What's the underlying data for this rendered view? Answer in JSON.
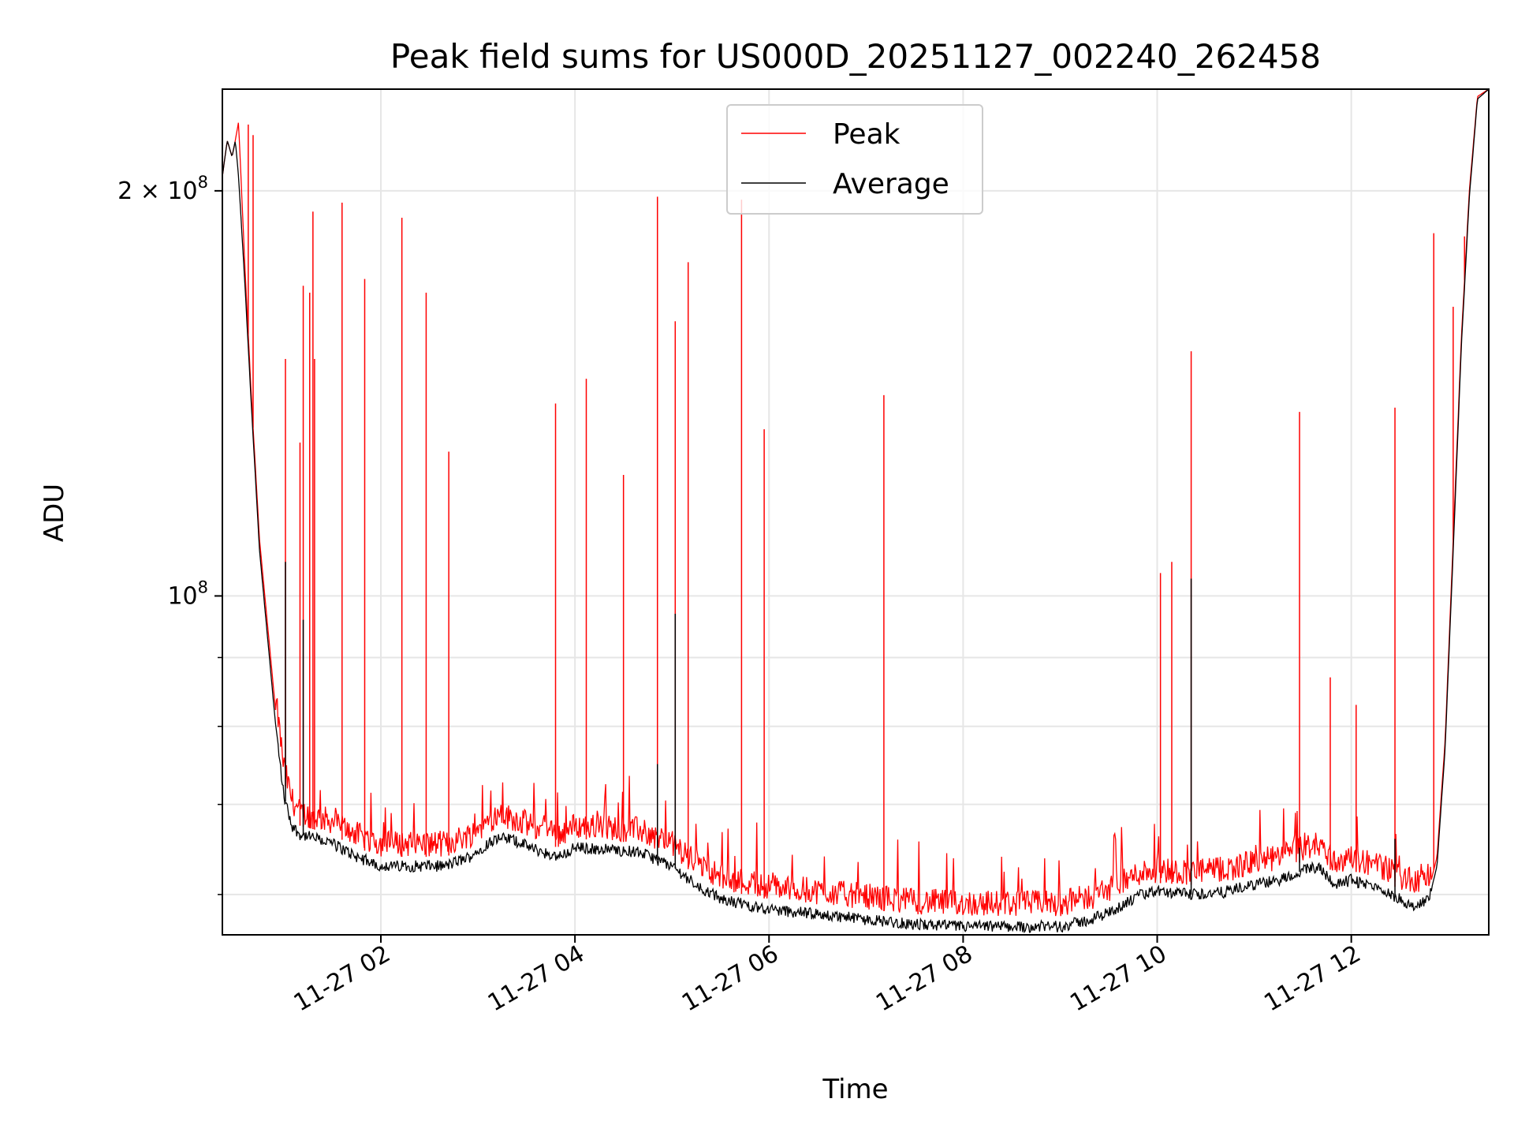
{
  "chart_data": {
    "type": "line",
    "title": "Peak field sums for US000D_20251127_002240_262458",
    "xlabel": "Time",
    "ylabel": "ADU",
    "yscale": "log",
    "ylim": [
      56000000,
      238000000
    ],
    "xlim": [
      "2025-11-27 00:22",
      "2025-11-27 13:25"
    ],
    "grid": true,
    "legend_position": "top-center",
    "x_ticks": [
      "11-27 02",
      "11-27 04",
      "11-27 06",
      "11-27 08",
      "11-27 10",
      "11-27 12"
    ],
    "x_tick_values": [
      "2025-11-27 02:00",
      "2025-11-27 04:00",
      "2025-11-27 06:00",
      "2025-11-27 08:00",
      "2025-11-27 10:00",
      "2025-11-27 12:00"
    ],
    "y_major_ticks": [
      {
        "value": 100000000,
        "mantissa": "",
        "label_base": "10",
        "label_exp": "8"
      },
      {
        "value": 200000000,
        "mantissa": "2 × ",
        "label_base": "10",
        "label_exp": "8"
      }
    ],
    "y_minor_ticks": [
      60000000,
      70000000,
      80000000,
      90000000
    ],
    "baseline": {
      "x": [
        "2025-11-27 00:22",
        "2025-11-27 00:25",
        "2025-11-27 00:28",
        "2025-11-27 00:30",
        "2025-11-27 00:32",
        "2025-11-27 00:36",
        "2025-11-27 00:40",
        "2025-11-27 00:45",
        "2025-11-27 00:50",
        "2025-11-27 00:55",
        "2025-11-27 01:00",
        "2025-11-27 01:05",
        "2025-11-27 01:10",
        "2025-11-27 01:20",
        "2025-11-27 01:30",
        "2025-11-27 01:45",
        "2025-11-27 02:00",
        "2025-11-27 02:20",
        "2025-11-27 02:40",
        "2025-11-27 02:55",
        "2025-11-27 03:10",
        "2025-11-27 03:20",
        "2025-11-27 03:40",
        "2025-11-27 03:50",
        "2025-11-27 04:00",
        "2025-11-27 04:20",
        "2025-11-27 04:40",
        "2025-11-27 05:00",
        "2025-11-27 05:15",
        "2025-11-27 05:30",
        "2025-11-27 06:00",
        "2025-11-27 06:30",
        "2025-11-27 07:00",
        "2025-11-27 07:30",
        "2025-11-27 08:00",
        "2025-11-27 08:30",
        "2025-11-27 09:00",
        "2025-11-27 09:20",
        "2025-11-27 09:40",
        "2025-11-27 09:50",
        "2025-11-27 10:00",
        "2025-11-27 10:20",
        "2025-11-27 10:40",
        "2025-11-27 11:00",
        "2025-11-27 11:15",
        "2025-11-27 11:30",
        "2025-11-27 11:40",
        "2025-11-27 11:50",
        "2025-11-27 12:00",
        "2025-11-27 12:10",
        "2025-11-27 12:20",
        "2025-11-27 12:30",
        "2025-11-27 12:40",
        "2025-11-27 12:48",
        "2025-11-27 12:53",
        "2025-11-27 12:58",
        "2025-11-27 13:03",
        "2025-11-27 13:08",
        "2025-11-27 13:13",
        "2025-11-27 13:18",
        "2025-11-27 13:25"
      ],
      "peak": [
        205000000,
        218000000,
        212000000,
        218000000,
        225000000,
        175000000,
        140000000,
        110000000,
        95000000,
        82000000,
        73000000,
        69000000,
        67500000,
        67000000,
        66500000,
        65000000,
        64000000,
        64000000,
        64000000,
        65000000,
        67000000,
        67000000,
        65500000,
        65000000,
        66000000,
        65800000,
        65500000,
        64000000,
        62000000,
        60500000,
        59500000,
        59000000,
        58500000,
        58000000,
        57800000,
        57800000,
        57800000,
        58500000,
        60000000,
        61000000,
        61200000,
        61000000,
        61200000,
        62000000,
        62500000,
        63500000,
        64000000,
        62000000,
        62500000,
        62000000,
        61500000,
        60500000,
        59800000,
        60500000,
        64000000,
        78000000,
        110000000,
        155000000,
        200000000,
        235000000,
        238000000
      ],
      "average": [
        205000000,
        218000000,
        212000000,
        218000000,
        205000000,
        170000000,
        138000000,
        108000000,
        93000000,
        80000000,
        71000000,
        67500000,
        66500000,
        66000000,
        65500000,
        64000000,
        63000000,
        63000000,
        63000000,
        64000000,
        66000000,
        66000000,
        64500000,
        64000000,
        65000000,
        64800000,
        64500000,
        63000000,
        61000000,
        59500000,
        58500000,
        58000000,
        57500000,
        57000000,
        56800000,
        56800000,
        56800000,
        57500000,
        59000000,
        60000000,
        60300000,
        60000000,
        60200000,
        61000000,
        61500000,
        62500000,
        63000000,
        61000000,
        61500000,
        61000000,
        60500000,
        59500000,
        58800000,
        59500000,
        63000000,
        77000000,
        108000000,
        153000000,
        198000000,
        234000000,
        238000000
      ]
    },
    "series": [
      {
        "name": "Peak",
        "color": "#ff0000",
        "spikes": [
          {
            "x": "2025-11-27 00:38",
            "y": 224000000
          },
          {
            "x": "2025-11-27 00:41",
            "y": 220000000
          },
          {
            "x": "2025-11-27 01:01",
            "y": 150000000
          },
          {
            "x": "2025-11-27 01:10",
            "y": 130000000
          },
          {
            "x": "2025-11-27 01:12",
            "y": 170000000
          },
          {
            "x": "2025-11-27 01:16",
            "y": 168000000
          },
          {
            "x": "2025-11-27 01:18",
            "y": 193000000
          },
          {
            "x": "2025-11-27 01:19",
            "y": 150000000
          },
          {
            "x": "2025-11-27 01:36",
            "y": 196000000
          },
          {
            "x": "2025-11-27 01:50",
            "y": 172000000
          },
          {
            "x": "2025-11-27 02:13",
            "y": 191000000
          },
          {
            "x": "2025-11-27 02:28",
            "y": 168000000
          },
          {
            "x": "2025-11-27 02:42",
            "y": 128000000
          },
          {
            "x": "2025-11-27 03:48",
            "y": 139000000
          },
          {
            "x": "2025-11-27 04:07",
            "y": 145000000
          },
          {
            "x": "2025-11-27 04:30",
            "y": 123000000
          },
          {
            "x": "2025-11-27 04:51",
            "y": 198000000
          },
          {
            "x": "2025-11-27 05:02",
            "y": 160000000
          },
          {
            "x": "2025-11-27 05:10",
            "y": 177000000
          },
          {
            "x": "2025-11-27 05:43",
            "y": 197000000
          },
          {
            "x": "2025-11-27 05:57",
            "y": 133000000
          },
          {
            "x": "2025-11-27 07:11",
            "y": 141000000
          },
          {
            "x": "2025-11-27 10:02",
            "y": 104000000
          },
          {
            "x": "2025-11-27 10:09",
            "y": 106000000
          },
          {
            "x": "2025-11-27 10:21",
            "y": 152000000
          },
          {
            "x": "2025-11-27 11:28",
            "y": 137000000
          },
          {
            "x": "2025-11-27 11:47",
            "y": 87000000
          },
          {
            "x": "2025-11-27 12:03",
            "y": 83000000
          },
          {
            "x": "2025-11-27 12:27",
            "y": 138000000
          },
          {
            "x": "2025-11-27 12:51",
            "y": 186000000
          },
          {
            "x": "2025-11-27 13:03",
            "y": 164000000
          },
          {
            "x": "2025-11-27 13:10",
            "y": 185000000
          }
        ]
      },
      {
        "name": "Average",
        "color": "#000000",
        "spikes": [
          {
            "x": "2025-11-27 01:01",
            "y": 106000000
          },
          {
            "x": "2025-11-27 01:12",
            "y": 96000000
          },
          {
            "x": "2025-11-27 04:51",
            "y": 75000000
          },
          {
            "x": "2025-11-27 05:02",
            "y": 97000000
          },
          {
            "x": "2025-11-27 10:21",
            "y": 103000000
          },
          {
            "x": "2025-11-27 11:28",
            "y": 65000000
          },
          {
            "x": "2025-11-27 12:27",
            "y": 66000000
          }
        ]
      }
    ]
  }
}
